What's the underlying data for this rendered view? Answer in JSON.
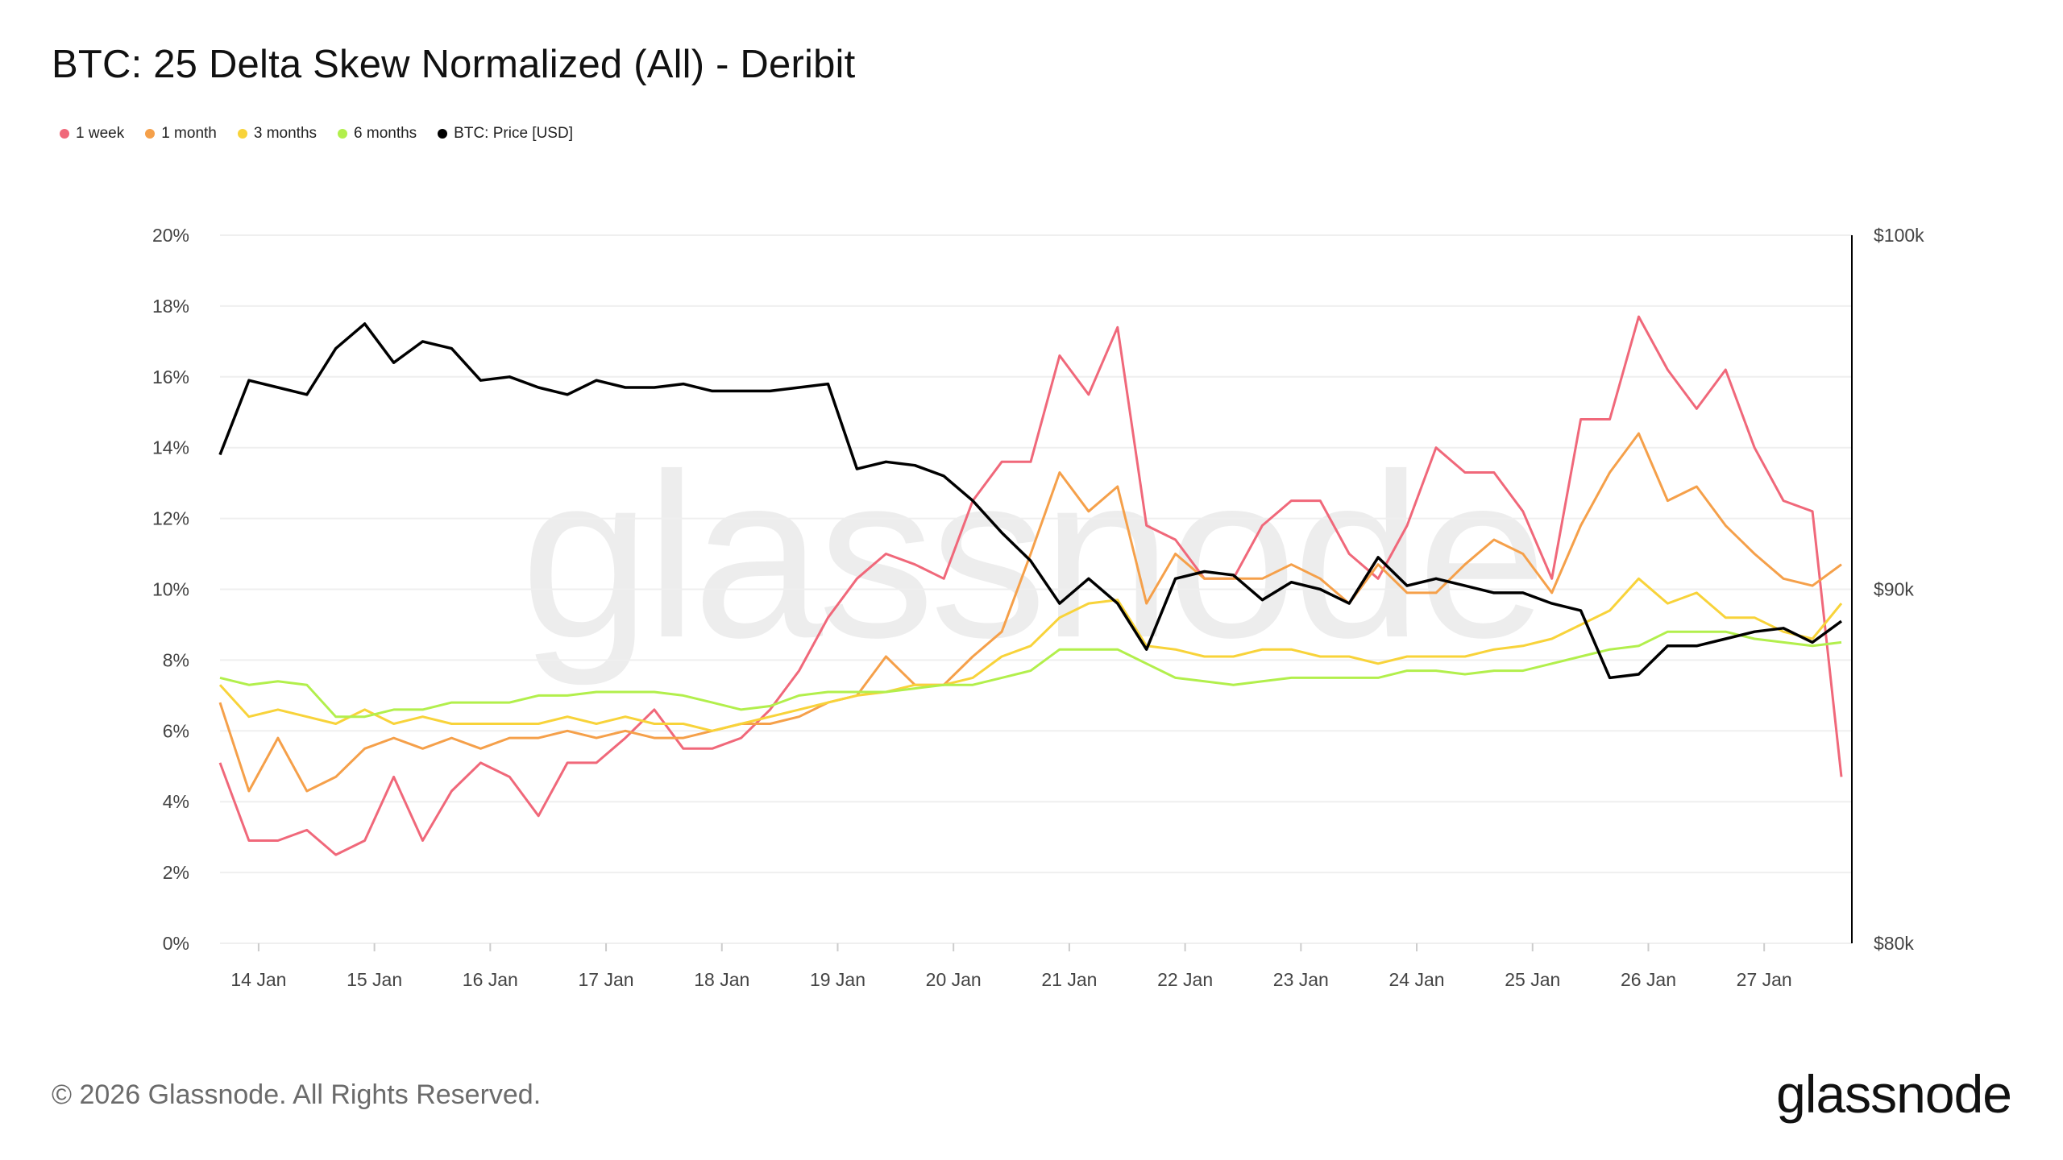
{
  "title": "BTC: 25 Delta Skew Normalized (All) - Deribit",
  "footer": "© 2026 Glassnode. All Rights Reserved.",
  "logo": "glassnode",
  "watermark": "glassnode",
  "chart_data": {
    "type": "line",
    "title": "BTC: 25 Delta Skew Normalized (All) - Deribit",
    "legend_position": "top-left",
    "grid": true,
    "x_tick_labels": [
      "14 Jan",
      "15 Jan",
      "16 Jan",
      "17 Jan",
      "18 Jan",
      "19 Jan",
      "20 Jan",
      "21 Jan",
      "22 Jan",
      "23 Jan",
      "24 Jan",
      "25 Jan",
      "26 Jan",
      "27 Jan"
    ],
    "x_tick_dates": [
      "2026-01-14T00:00",
      "2026-01-15T00:00",
      "2026-01-16T00:00",
      "2026-01-17T00:00",
      "2026-01-18T00:00",
      "2026-01-19T00:00",
      "2026-01-20T00:00",
      "2026-01-21T00:00",
      "2026-01-22T00:00",
      "2026-01-23T00:00",
      "2026-01-24T00:00",
      "2026-01-25T00:00",
      "2026-01-26T00:00",
      "2026-01-27T00:00"
    ],
    "y_left": {
      "ticks": [
        "0%",
        "2%",
        "4%",
        "6%",
        "8%",
        "10%",
        "12%",
        "14%",
        "16%",
        "18%",
        "20%"
      ],
      "range": [
        0,
        20
      ],
      "unit": "%"
    },
    "y_right": {
      "ticks": [
        "$80k",
        "$90k",
        "$100k"
      ],
      "range": [
        80,
        100
      ],
      "unit": "$k"
    },
    "x": [
      "2026-01-13T16:00",
      "2026-01-13T22:00",
      "2026-01-14T04:00",
      "2026-01-14T10:00",
      "2026-01-14T16:00",
      "2026-01-14T22:00",
      "2026-01-15T04:00",
      "2026-01-15T10:00",
      "2026-01-15T16:00",
      "2026-01-15T22:00",
      "2026-01-16T04:00",
      "2026-01-16T10:00",
      "2026-01-16T16:00",
      "2026-01-16T22:00",
      "2026-01-17T04:00",
      "2026-01-17T10:00",
      "2026-01-17T16:00",
      "2026-01-17T22:00",
      "2026-01-18T04:00",
      "2026-01-18T10:00",
      "2026-01-18T16:00",
      "2026-01-18T22:00",
      "2026-01-19T04:00",
      "2026-01-19T10:00",
      "2026-01-19T16:00",
      "2026-01-19T22:00",
      "2026-01-20T04:00",
      "2026-01-20T10:00",
      "2026-01-20T16:00",
      "2026-01-20T22:00",
      "2026-01-21T04:00",
      "2026-01-21T10:00",
      "2026-01-21T16:00",
      "2026-01-21T22:00",
      "2026-01-22T04:00",
      "2026-01-22T10:00",
      "2026-01-22T16:00",
      "2026-01-22T22:00",
      "2026-01-23T04:00",
      "2026-01-23T10:00",
      "2026-01-23T16:00",
      "2026-01-23T22:00",
      "2026-01-24T04:00",
      "2026-01-24T10:00",
      "2026-01-24T16:00",
      "2026-01-24T22:00",
      "2026-01-25T04:00",
      "2026-01-25T10:00",
      "2026-01-25T16:00",
      "2026-01-25T22:00",
      "2026-01-26T04:00",
      "2026-01-26T10:00",
      "2026-01-26T16:00",
      "2026-01-26T22:00",
      "2026-01-27T04:00",
      "2026-01-27T10:00",
      "2026-01-27T16:00"
    ],
    "series": [
      {
        "name": "1 week",
        "axis": "left",
        "color": "#f0687a",
        "values": [
          5.1,
          2.9,
          2.9,
          3.2,
          2.5,
          2.9,
          4.7,
          2.9,
          4.3,
          5.1,
          4.7,
          3.6,
          5.1,
          5.1,
          5.8,
          6.6,
          5.5,
          5.5,
          5.8,
          6.6,
          7.7,
          9.2,
          10.3,
          11.0,
          10.7,
          10.3,
          12.5,
          13.6,
          13.6,
          16.6,
          15.5,
          17.4,
          11.8,
          11.4,
          10.3,
          10.3,
          11.8,
          12.5,
          12.5,
          11.0,
          10.3,
          11.8,
          14.0,
          13.3,
          13.3,
          12.2,
          10.3,
          14.8,
          14.8,
          17.7,
          16.2,
          15.1,
          16.2,
          14.0,
          12.5,
          12.2,
          4.7
        ]
      },
      {
        "name": "1 month",
        "axis": "left",
        "color": "#f5a04a",
        "values": [
          6.8,
          4.3,
          5.8,
          4.3,
          4.7,
          5.5,
          5.8,
          5.5,
          5.8,
          5.5,
          5.8,
          5.8,
          6.0,
          5.8,
          6.0,
          5.8,
          5.8,
          6.0,
          6.2,
          6.2,
          6.4,
          6.8,
          7.0,
          8.1,
          7.3,
          7.3,
          8.1,
          8.8,
          11.0,
          13.3,
          12.2,
          12.9,
          9.6,
          11.0,
          10.3,
          10.3,
          10.3,
          10.7,
          10.3,
          9.6,
          10.7,
          9.9,
          9.9,
          10.7,
          11.4,
          11.0,
          9.9,
          11.8,
          13.3,
          14.4,
          12.5,
          12.9,
          11.8,
          11.0,
          10.3,
          10.1,
          10.7
        ]
      },
      {
        "name": "3 months",
        "axis": "left",
        "color": "#f8d33a",
        "values": [
          7.3,
          6.4,
          6.6,
          6.4,
          6.2,
          6.6,
          6.2,
          6.4,
          6.2,
          6.2,
          6.2,
          6.2,
          6.4,
          6.2,
          6.4,
          6.2,
          6.2,
          6.0,
          6.2,
          6.4,
          6.6,
          6.8,
          7.0,
          7.1,
          7.3,
          7.3,
          7.5,
          8.1,
          8.4,
          9.2,
          9.6,
          9.7,
          8.4,
          8.3,
          8.1,
          8.1,
          8.3,
          8.3,
          8.1,
          8.1,
          7.9,
          8.1,
          8.1,
          8.1,
          8.3,
          8.4,
          8.6,
          9.0,
          9.4,
          10.3,
          9.6,
          9.9,
          9.2,
          9.2,
          8.8,
          8.6,
          9.6
        ]
      },
      {
        "name": "6 months",
        "axis": "left",
        "color": "#b2ef4c",
        "values": [
          7.5,
          7.3,
          7.4,
          7.3,
          6.4,
          6.4,
          6.6,
          6.6,
          6.8,
          6.8,
          6.8,
          7.0,
          7.0,
          7.1,
          7.1,
          7.1,
          7.0,
          6.8,
          6.6,
          6.7,
          7.0,
          7.1,
          7.1,
          7.1,
          7.2,
          7.3,
          7.3,
          7.5,
          7.7,
          8.3,
          8.3,
          8.3,
          7.9,
          7.5,
          7.4,
          7.3,
          7.4,
          7.5,
          7.5,
          7.5,
          7.5,
          7.7,
          7.7,
          7.6,
          7.7,
          7.7,
          7.9,
          8.1,
          8.3,
          8.4,
          8.8,
          8.8,
          8.8,
          8.6,
          8.5,
          8.4,
          8.5
        ]
      },
      {
        "name": "BTC: Price [USD]",
        "axis": "right",
        "color": "#000000",
        "values": [
          93.8,
          95.9,
          95.7,
          95.5,
          96.8,
          97.5,
          96.4,
          97.0,
          96.8,
          95.9,
          96.0,
          95.7,
          95.5,
          95.9,
          95.7,
          95.7,
          95.8,
          95.6,
          95.6,
          95.6,
          95.7,
          95.8,
          93.4,
          93.6,
          93.5,
          93.2,
          92.5,
          91.6,
          90.8,
          89.6,
          90.3,
          89.6,
          88.3,
          90.3,
          90.5,
          90.4,
          89.7,
          90.2,
          90.0,
          89.6,
          90.9,
          90.1,
          90.3,
          90.1,
          89.9,
          89.9,
          89.6,
          89.4,
          87.5,
          87.6,
          88.4,
          88.4,
          88.6,
          88.8,
          88.9,
          88.5,
          89.1
        ]
      }
    ]
  }
}
